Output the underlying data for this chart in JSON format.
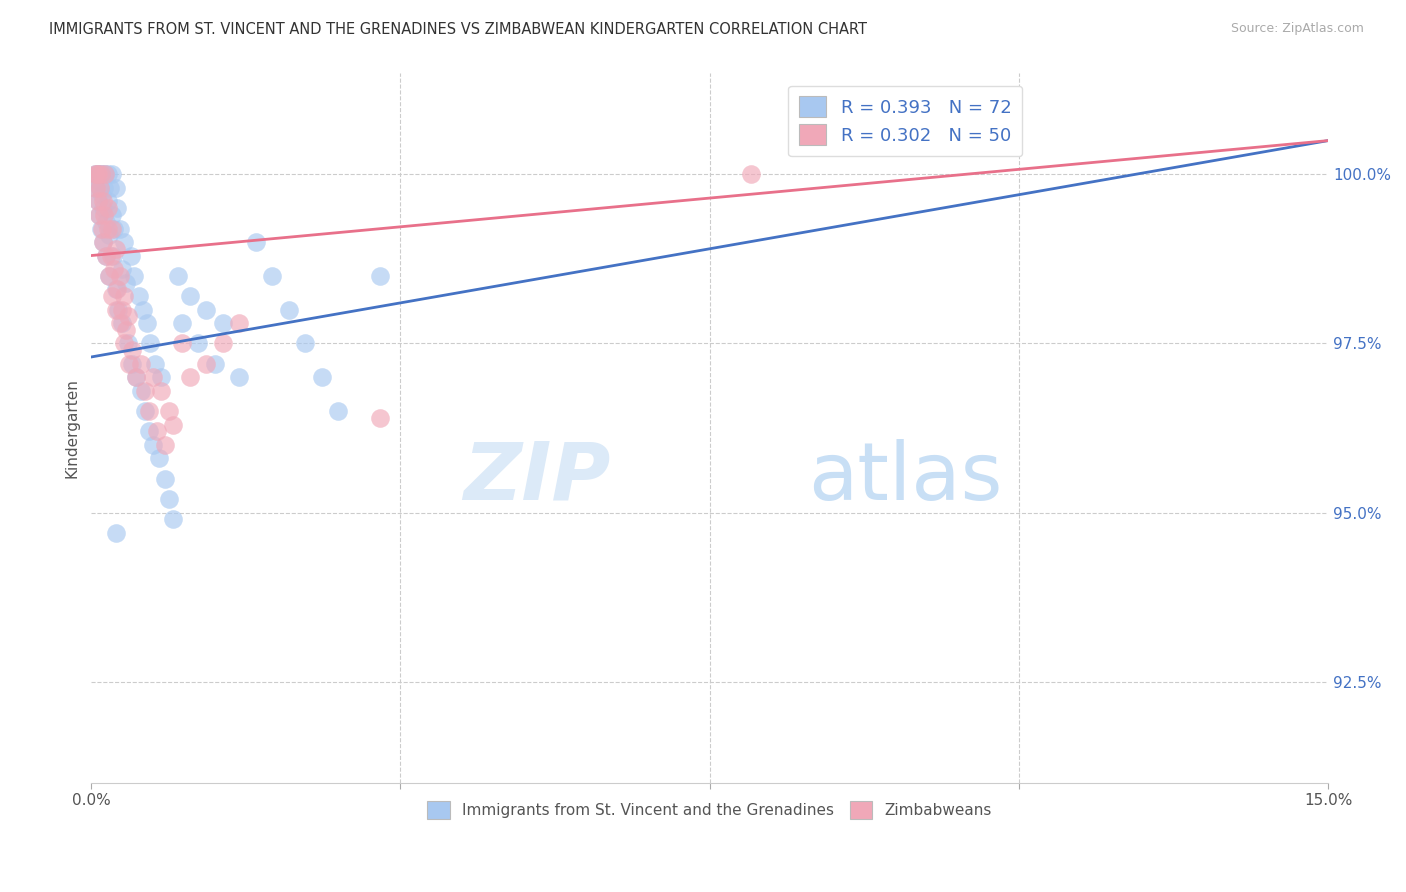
{
  "title": "IMMIGRANTS FROM ST. VINCENT AND THE GRENADINES VS ZIMBABWEAN KINDERGARTEN CORRELATION CHART",
  "source": "Source: ZipAtlas.com",
  "ylabel": "Kindergarten",
  "ytick_vals": [
    92.5,
    95.0,
    97.5,
    100.0
  ],
  "ytick_labels": [
    "92.5%",
    "95.0%",
    "97.5%",
    "100.0%"
  ],
  "xlim": [
    0.0,
    15.0
  ],
  "ylim": [
    91.0,
    101.5
  ],
  "legend1_label": "R = 0.393   N = 72",
  "legend2_label": "R = 0.302   N = 50",
  "series1_color": "#a8c8f0",
  "series2_color": "#f0a8b8",
  "series1_line_color": "#4472c4",
  "series2_line_color": "#e8708a",
  "blue_line_x": [
    0.0,
    15.0
  ],
  "blue_line_y": [
    97.3,
    100.5
  ],
  "pink_line_x": [
    0.0,
    15.0
  ],
  "pink_line_y": [
    98.8,
    100.5
  ],
  "blue_x": [
    0.05,
    0.05,
    0.07,
    0.08,
    0.08,
    0.09,
    0.1,
    0.1,
    0.11,
    0.12,
    0.12,
    0.13,
    0.14,
    0.15,
    0.15,
    0.16,
    0.17,
    0.18,
    0.18,
    0.2,
    0.2,
    0.22,
    0.22,
    0.23,
    0.25,
    0.25,
    0.27,
    0.28,
    0.3,
    0.3,
    0.32,
    0.33,
    0.35,
    0.37,
    0.38,
    0.4,
    0.42,
    0.45,
    0.48,
    0.5,
    0.52,
    0.55,
    0.58,
    0.6,
    0.63,
    0.65,
    0.68,
    0.7,
    0.72,
    0.75,
    0.78,
    0.82,
    0.85,
    0.9,
    0.95,
    1.0,
    1.05,
    1.1,
    1.2,
    1.3,
    1.4,
    1.5,
    1.6,
    1.8,
    2.0,
    2.2,
    2.4,
    2.6,
    2.8,
    3.0,
    3.5,
    0.3
  ],
  "blue_y": [
    100.0,
    99.8,
    100.0,
    100.0,
    99.6,
    99.9,
    100.0,
    99.4,
    99.8,
    100.0,
    99.2,
    99.7,
    100.0,
    99.5,
    99.0,
    99.8,
    100.0,
    99.3,
    98.8,
    100.0,
    99.6,
    99.1,
    98.5,
    99.8,
    100.0,
    99.4,
    98.8,
    99.2,
    99.8,
    98.3,
    99.5,
    98.0,
    99.2,
    98.6,
    97.8,
    99.0,
    98.4,
    97.5,
    98.8,
    97.2,
    98.5,
    97.0,
    98.2,
    96.8,
    98.0,
    96.5,
    97.8,
    96.2,
    97.5,
    96.0,
    97.2,
    95.8,
    97.0,
    95.5,
    95.2,
    94.9,
    98.5,
    97.8,
    98.2,
    97.5,
    98.0,
    97.2,
    97.8,
    97.0,
    99.0,
    98.5,
    98.0,
    97.5,
    97.0,
    96.5,
    98.5,
    94.7
  ],
  "pink_x": [
    0.05,
    0.06,
    0.07,
    0.08,
    0.09,
    0.1,
    0.11,
    0.12,
    0.13,
    0.14,
    0.15,
    0.16,
    0.17,
    0.18,
    0.2,
    0.22,
    0.24,
    0.26,
    0.28,
    0.3,
    0.32,
    0.35,
    0.38,
    0.4,
    0.43,
    0.46,
    0.5,
    0.55,
    0.6,
    0.65,
    0.7,
    0.75,
    0.8,
    0.85,
    0.9,
    0.95,
    1.0,
    1.1,
    1.2,
    1.4,
    1.6,
    1.8,
    0.2,
    0.25,
    0.3,
    0.35,
    0.4,
    0.45,
    8.0,
    3.5
  ],
  "pink_y": [
    100.0,
    99.8,
    100.0,
    99.6,
    100.0,
    99.4,
    99.8,
    100.0,
    99.2,
    99.6,
    99.0,
    99.4,
    100.0,
    98.8,
    99.2,
    98.5,
    98.8,
    98.2,
    98.6,
    98.0,
    98.3,
    97.8,
    98.0,
    97.5,
    97.7,
    97.2,
    97.4,
    97.0,
    97.2,
    96.8,
    96.5,
    97.0,
    96.2,
    96.8,
    96.0,
    96.5,
    96.3,
    97.5,
    97.0,
    97.2,
    97.5,
    97.8,
    99.5,
    99.2,
    98.9,
    98.5,
    98.2,
    97.9,
    100.0,
    96.4
  ]
}
